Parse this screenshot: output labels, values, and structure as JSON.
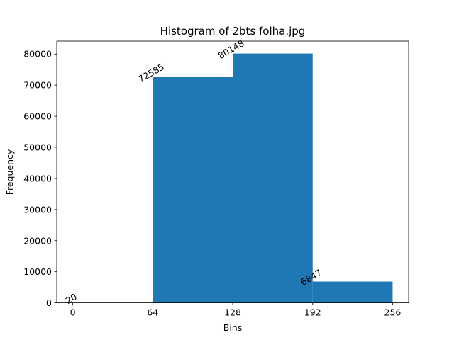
{
  "chart_data": {
    "type": "bar",
    "title": "Histogram of 2bts folha.jpg",
    "xlabel": "Bins",
    "ylabel": "Frequency",
    "bins": [
      {
        "start": 0,
        "end": 64,
        "value": 20
      },
      {
        "start": 64,
        "end": 128,
        "value": 72585
      },
      {
        "start": 128,
        "end": 192,
        "value": 80148
      },
      {
        "start": 192,
        "end": 256,
        "value": 6847
      }
    ],
    "xticks": [
      0,
      64,
      128,
      192,
      256
    ],
    "yticks": [
      0,
      10000,
      20000,
      30000,
      40000,
      50000,
      60000,
      70000,
      80000
    ],
    "xlim": [
      -12.8,
      268.8
    ],
    "ylim": [
      0,
      84155
    ],
    "grid": false,
    "bar_color": "#1f77b4",
    "bar_label_rotation_deg": 30
  }
}
